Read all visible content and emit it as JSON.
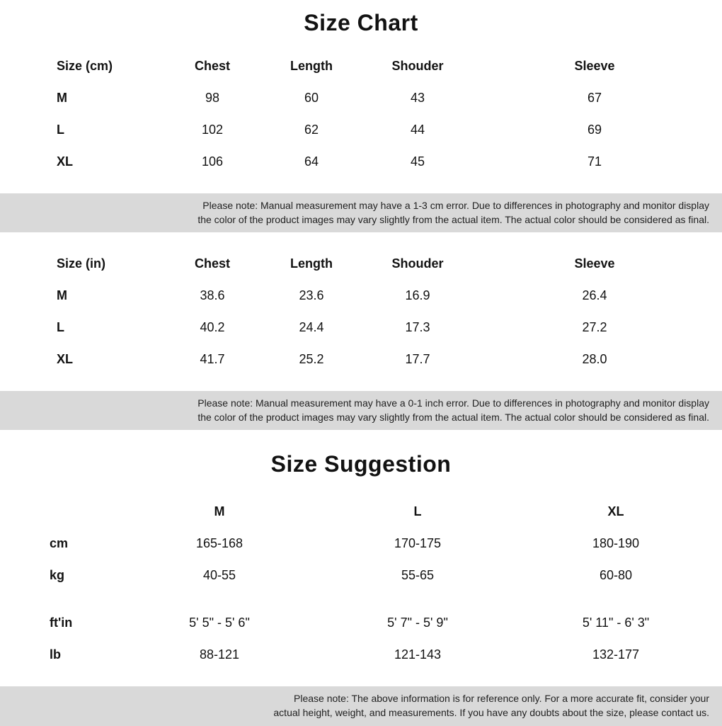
{
  "colors": {
    "background": "#ffffff",
    "text": "#121212",
    "note_bg": "#d9d9d9",
    "note_text": "#212121"
  },
  "titles": {
    "chart": "Size Chart",
    "suggestion": "Size Suggestion"
  },
  "cm_table": {
    "headers": [
      "Size (cm)",
      "Chest",
      "Length",
      "Shouder",
      "Sleeve"
    ],
    "rows": [
      [
        "M",
        "98",
        "60",
        "43",
        "67"
      ],
      [
        "L",
        "102",
        "62",
        "44",
        "69"
      ],
      [
        "XL",
        "106",
        "64",
        "45",
        "71"
      ]
    ]
  },
  "in_table": {
    "headers": [
      "Size (in)",
      "Chest",
      "Length",
      "Shouder",
      "Sleeve"
    ],
    "rows": [
      [
        "M",
        "38.6",
        "23.6",
        "16.9",
        "26.4"
      ],
      [
        "L",
        "40.2",
        "24.4",
        "17.3",
        "27.2"
      ],
      [
        "XL",
        "41.7",
        "25.2",
        "17.7",
        "28.0"
      ]
    ]
  },
  "notes": {
    "cm": {
      "line1": "Please note: Manual measurement may have a 1-3 cm error. Due to differences in photography and monitor display",
      "line2": "the color of the product images may vary slightly from the actual item. The actual color should be considered as final."
    },
    "in": {
      "line1": "Please note: Manual measurement may have a 0-1 inch error. Due to differences in photography and monitor display",
      "line2": "the color of the product images may vary slightly from the actual item. The actual color should be considered as final."
    },
    "sugg": {
      "line1": "Please note: The above information is for reference only. For a more accurate fit, consider your",
      "line2": "actual height, weight, and measurements. If you have any doubts about the size, please contact us."
    }
  },
  "suggestion": {
    "headers": [
      "",
      "M",
      "L",
      "XL"
    ],
    "metric_rows": [
      [
        "cm",
        "165-168",
        "170-175",
        "180-190"
      ],
      [
        "kg",
        "40-55",
        "55-65",
        "60-80"
      ]
    ],
    "imperial_rows": [
      [
        "ft'in",
        "5' 5\" - 5' 6\"",
        "5' 7\" - 5' 9\"",
        "5' 11\" - 6' 3\""
      ],
      [
        "lb",
        "88-121",
        "121-143",
        "132-177"
      ]
    ]
  }
}
